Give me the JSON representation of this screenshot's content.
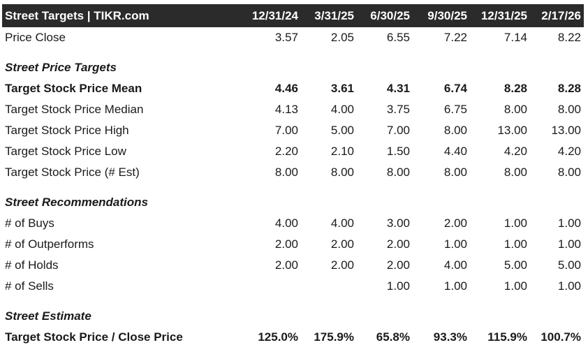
{
  "header": {
    "title": "Street Targets | TIKR.com",
    "dates": [
      "12/31/24",
      "3/31/25",
      "6/30/25",
      "9/30/25",
      "12/31/25",
      "2/17/26"
    ]
  },
  "price_close": {
    "label": "Price Close",
    "values": [
      "3.57",
      "2.05",
      "6.55",
      "7.22",
      "7.14",
      "8.22"
    ]
  },
  "price_targets": {
    "section_label": "Street Price Targets",
    "rows": [
      {
        "label": "Target Stock Price Mean",
        "values": [
          "4.46",
          "3.61",
          "4.31",
          "6.74",
          "8.28",
          "8.28"
        ]
      },
      {
        "label": "Target Stock Price Median",
        "values": [
          "4.13",
          "4.00",
          "3.75",
          "6.75",
          "8.00",
          "8.00"
        ]
      },
      {
        "label": "Target Stock Price High",
        "values": [
          "7.00",
          "5.00",
          "7.00",
          "8.00",
          "13.00",
          "13.00"
        ]
      },
      {
        "label": "Target Stock Price Low",
        "values": [
          "2.20",
          "2.10",
          "1.50",
          "4.40",
          "4.20",
          "4.20"
        ]
      },
      {
        "label": "Target Stock Price (# Est)",
        "values": [
          "8.00",
          "8.00",
          "8.00",
          "8.00",
          "8.00",
          "8.00"
        ]
      }
    ]
  },
  "recommendations": {
    "section_label": "Street Recommendations",
    "rows": [
      {
        "label": "# of Buys",
        "values": [
          "4.00",
          "4.00",
          "3.00",
          "2.00",
          "1.00",
          "1.00"
        ]
      },
      {
        "label": "# of Outperforms",
        "values": [
          "2.00",
          "2.00",
          "2.00",
          "1.00",
          "1.00",
          "1.00"
        ]
      },
      {
        "label": "# of Holds",
        "values": [
          "2.00",
          "2.00",
          "2.00",
          "4.00",
          "5.00",
          "5.00"
        ]
      },
      {
        "label": "# of Sells",
        "values": [
          "",
          "",
          "1.00",
          "1.00",
          "1.00",
          "1.00"
        ]
      }
    ]
  },
  "estimate": {
    "section_label": "Street Estimate",
    "rows": [
      {
        "label": "Target Stock Price / Close Price",
        "values": [
          "125.0%",
          "175.9%",
          "65.8%",
          "93.3%",
          "115.9%",
          "100.7%"
        ]
      }
    ]
  }
}
